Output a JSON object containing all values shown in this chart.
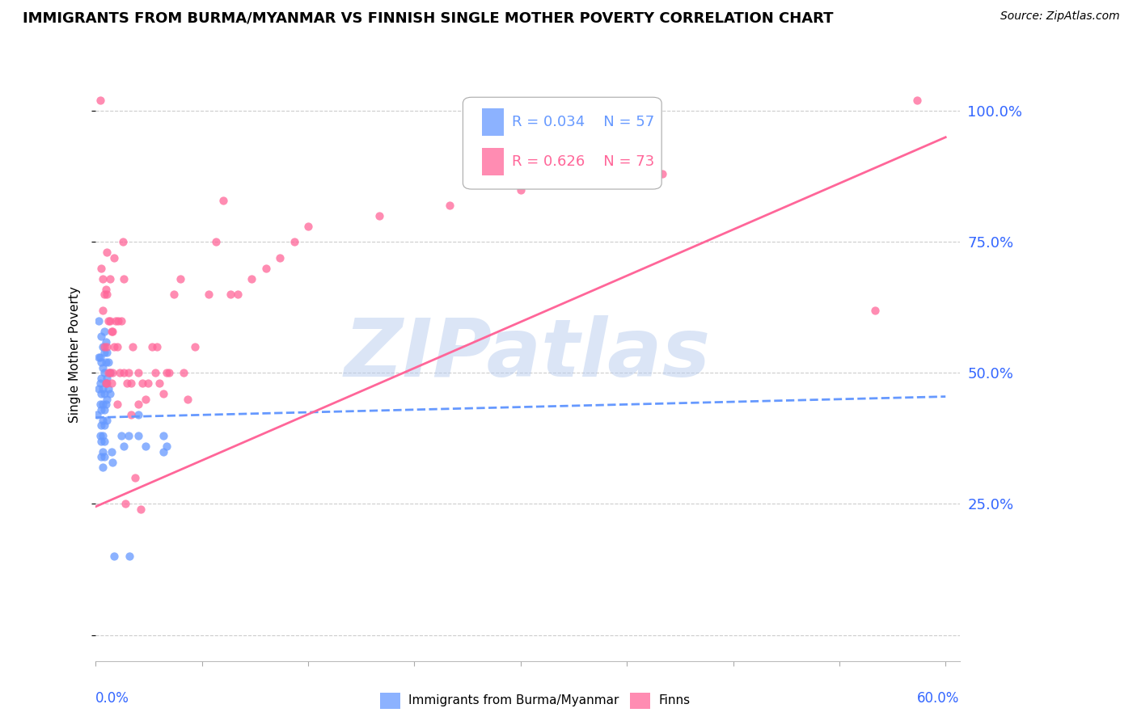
{
  "title": "IMMIGRANTS FROM BURMA/MYANMAR VS FINNISH SINGLE MOTHER POVERTY CORRELATION CHART",
  "source": "Source: ZipAtlas.com",
  "ylabel": "Single Mother Poverty",
  "right_yticklabels": [
    "",
    "25.0%",
    "50.0%",
    "75.0%",
    "100.0%"
  ],
  "right_yticks": [
    0.0,
    0.25,
    0.5,
    0.75,
    1.0
  ],
  "legend_r1": "R = 0.034",
  "legend_n1": "N = 57",
  "legend_r2": "R = 0.626",
  "legend_n2": "N = 73",
  "blue_color": "#6699FF",
  "pink_color": "#FF6699",
  "watermark": "ZIPatlas",
  "blue_scatter_x": [
    0.001,
    0.002,
    0.002,
    0.002,
    0.003,
    0.003,
    0.003,
    0.003,
    0.004,
    0.004,
    0.004,
    0.004,
    0.004,
    0.004,
    0.004,
    0.004,
    0.005,
    0.005,
    0.005,
    0.005,
    0.005,
    0.005,
    0.005,
    0.005,
    0.006,
    0.006,
    0.006,
    0.006,
    0.006,
    0.006,
    0.006,
    0.006,
    0.007,
    0.007,
    0.007,
    0.007,
    0.008,
    0.008,
    0.008,
    0.008,
    0.009,
    0.009,
    0.01,
    0.01,
    0.011,
    0.012,
    0.013,
    0.018,
    0.02,
    0.023,
    0.024,
    0.03,
    0.03,
    0.035,
    0.048,
    0.048,
    0.05
  ],
  "blue_scatter_y": [
    0.42,
    0.6,
    0.53,
    0.47,
    0.53,
    0.48,
    0.44,
    0.38,
    0.57,
    0.52,
    0.49,
    0.46,
    0.43,
    0.4,
    0.37,
    0.34,
    0.55,
    0.51,
    0.47,
    0.44,
    0.41,
    0.38,
    0.35,
    0.32,
    0.58,
    0.54,
    0.5,
    0.46,
    0.43,
    0.4,
    0.37,
    0.34,
    0.56,
    0.52,
    0.48,
    0.44,
    0.54,
    0.49,
    0.45,
    0.41,
    0.52,
    0.47,
    0.5,
    0.46,
    0.35,
    0.33,
    0.15,
    0.38,
    0.36,
    0.38,
    0.15,
    0.42,
    0.38,
    0.36,
    0.38,
    0.35,
    0.36
  ],
  "pink_scatter_x": [
    0.003,
    0.004,
    0.005,
    0.005,
    0.006,
    0.006,
    0.007,
    0.007,
    0.008,
    0.008,
    0.008,
    0.008,
    0.009,
    0.009,
    0.01,
    0.01,
    0.01,
    0.011,
    0.011,
    0.012,
    0.012,
    0.013,
    0.013,
    0.014,
    0.015,
    0.015,
    0.016,
    0.017,
    0.018,
    0.019,
    0.02,
    0.02,
    0.021,
    0.022,
    0.023,
    0.025,
    0.025,
    0.026,
    0.028,
    0.03,
    0.03,
    0.032,
    0.033,
    0.035,
    0.037,
    0.04,
    0.042,
    0.043,
    0.045,
    0.048,
    0.05,
    0.052,
    0.055,
    0.06,
    0.062,
    0.065,
    0.07,
    0.08,
    0.085,
    0.09,
    0.095,
    0.1,
    0.11,
    0.12,
    0.13,
    0.14,
    0.15,
    0.2,
    0.25,
    0.3,
    0.4,
    0.55,
    0.58
  ],
  "pink_scatter_y": [
    1.02,
    0.7,
    0.68,
    0.62,
    0.65,
    0.55,
    0.66,
    0.48,
    0.73,
    0.65,
    0.55,
    0.48,
    0.6,
    0.5,
    0.68,
    0.6,
    0.5,
    0.58,
    0.48,
    0.58,
    0.5,
    0.72,
    0.55,
    0.6,
    0.55,
    0.44,
    0.6,
    0.5,
    0.6,
    0.75,
    0.68,
    0.5,
    0.25,
    0.48,
    0.5,
    0.48,
    0.42,
    0.55,
    0.3,
    0.5,
    0.44,
    0.24,
    0.48,
    0.45,
    0.48,
    0.55,
    0.5,
    0.55,
    0.48,
    0.46,
    0.5,
    0.5,
    0.65,
    0.68,
    0.5,
    0.45,
    0.55,
    0.65,
    0.75,
    0.83,
    0.65,
    0.65,
    0.68,
    0.7,
    0.72,
    0.75,
    0.78,
    0.8,
    0.82,
    0.85,
    0.88,
    0.62,
    1.02
  ],
  "xlim": [
    0.0,
    0.61
  ],
  "ylim": [
    -0.05,
    1.12
  ],
  "blue_line_x": [
    0.0,
    0.6
  ],
  "blue_line_y": [
    0.415,
    0.455
  ],
  "pink_line_x": [
    0.0,
    0.6
  ],
  "pink_line_y": [
    0.245,
    0.95
  ]
}
